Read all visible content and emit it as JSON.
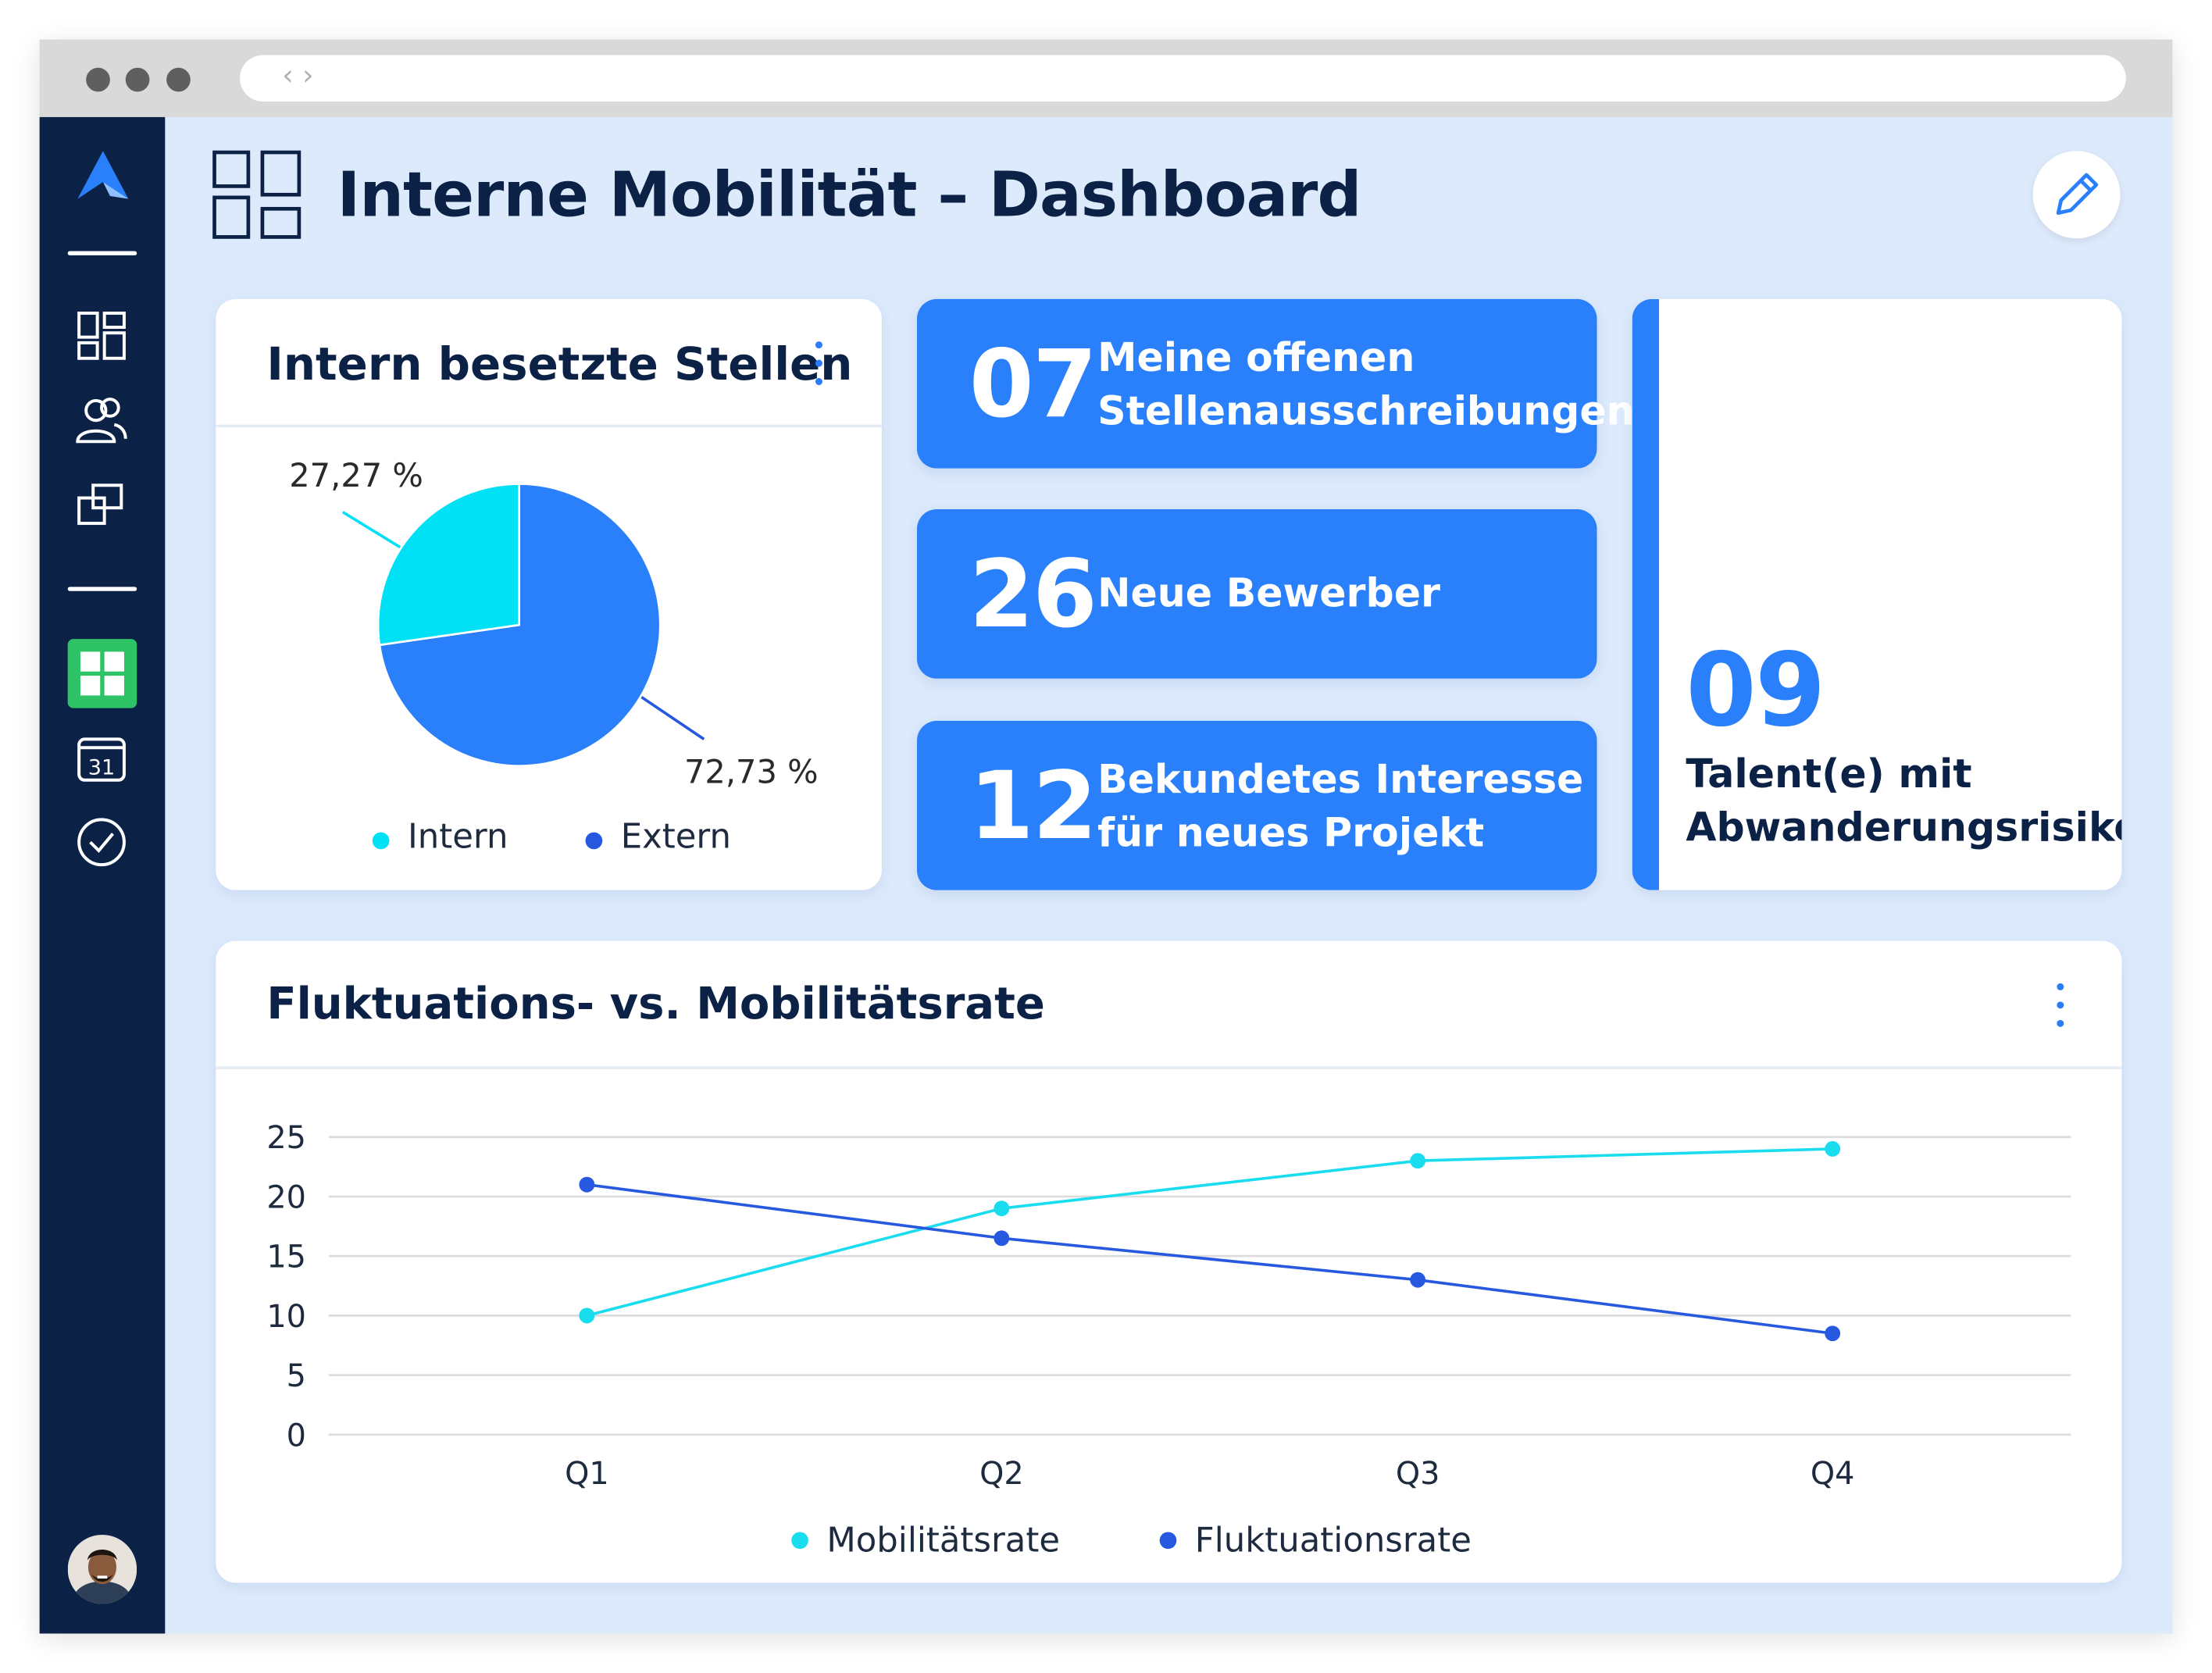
{
  "browser": {
    "nav_arrows": "‹ ›"
  },
  "sidebar": {
    "nav_items": [
      "dashboard-grid-icon",
      "people-icon",
      "projects-icon",
      "dashboard-active-icon",
      "calendar-icon",
      "checkmark-icon"
    ],
    "calendar_day": "31",
    "active_color": "#2fc367",
    "bg_color": "#0b2146"
  },
  "header": {
    "title": "Interne Mobilität – Dashboard"
  },
  "pie_card": {
    "title": "Intern besetzte Stellen",
    "label_intern": "27,27 %",
    "label_extern": "72,73 %",
    "legend_intern": "Intern",
    "legend_extern": "Extern"
  },
  "kpis": [
    {
      "number": "07",
      "line1": "Meine offenen",
      "line2": "Stellenausschreibungen"
    },
    {
      "number": "26",
      "line1": "Neue Bewerber",
      "line2": ""
    },
    {
      "number": "12",
      "line1": "Bekundetes Interesse",
      "line2": "für neues Projekt"
    }
  ],
  "talent": {
    "number": "09",
    "line1": "Talent(e) mit",
    "line2": "Abwanderungsrisiko"
  },
  "line_card": {
    "title": "Fluktuations- vs. Mobilitätsrate"
  },
  "colors": {
    "intern": "#00e1f6",
    "extern": "#2a80fb",
    "fluktuation": "#2659e0",
    "mobilitaet": "#19dcef"
  },
  "chart_data": [
    {
      "type": "pie",
      "title": "Intern besetzte Stellen",
      "categories": [
        "Intern",
        "Extern"
      ],
      "values": [
        27.27,
        72.73
      ],
      "legend": "bottom"
    },
    {
      "type": "line",
      "title": "Fluktuations- vs. Mobilitätsrate",
      "categories": [
        "Q1",
        "Q2",
        "Q3",
        "Q4"
      ],
      "series": [
        {
          "name": "Mobilitätsrate",
          "values": [
            10,
            19,
            23,
            24
          ]
        },
        {
          "name": "Fluktuationsrate",
          "values": [
            21,
            16.5,
            13,
            8.5
          ]
        }
      ],
      "ylim": [
        0,
        25
      ],
      "yticks": [
        "0",
        "5",
        "10",
        "15",
        "20",
        "25"
      ],
      "grid": true,
      "legend": "bottom"
    }
  ]
}
